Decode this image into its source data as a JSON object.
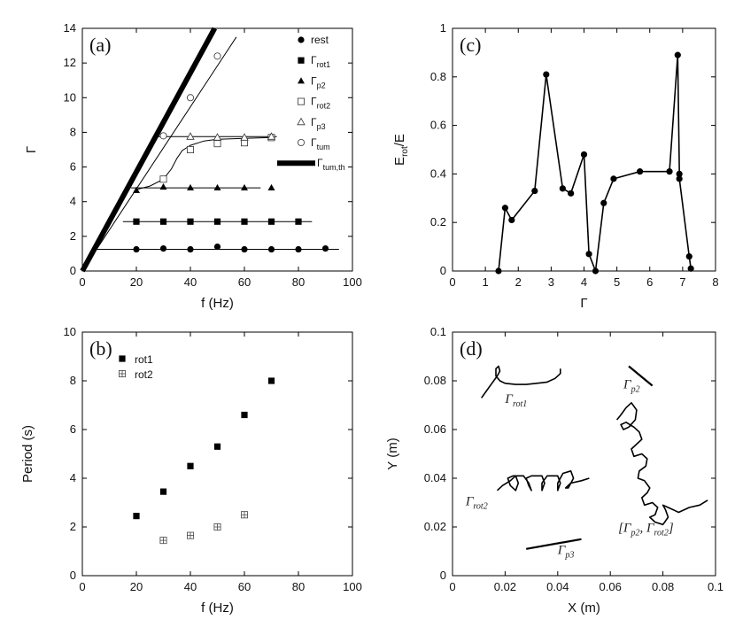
{
  "figure": {
    "description_free": true
  },
  "chart_data": [
    {
      "id": "a",
      "panel_label": "(a)",
      "type": "scatter",
      "xlabel": "f (Hz)",
      "ylabel": "Γ",
      "xlim": [
        0,
        100
      ],
      "ylim": [
        0,
        14
      ],
      "xticks": [
        0,
        20,
        40,
        60,
        80,
        100
      ],
      "yticks": [
        0,
        2,
        4,
        6,
        8,
        10,
        12,
        14
      ],
      "legend_position": "top-right",
      "series": [
        {
          "name": "rest",
          "base": "Γ",
          "sub": "",
          "marker": "filled-circle",
          "x": [
            20,
            30,
            40,
            50,
            60,
            70,
            80,
            90
          ],
          "y": [
            1.25,
            1.3,
            1.25,
            1.4,
            1.25,
            1.25,
            1.25,
            1.3
          ]
        },
        {
          "name": "rot1",
          "base": "Γ",
          "sub": "rot1",
          "marker": "filled-square",
          "x": [
            20,
            30,
            40,
            50,
            60,
            70,
            80
          ],
          "y": [
            2.85,
            2.85,
            2.85,
            2.85,
            2.85,
            2.85,
            2.85
          ]
        },
        {
          "name": "p2",
          "base": "Γ",
          "sub": "p2",
          "marker": "filled-triangle",
          "x": [
            20,
            30,
            40,
            50,
            60,
            70
          ],
          "y": [
            4.65,
            4.85,
            4.8,
            4.8,
            4.8,
            4.8
          ]
        },
        {
          "name": "rot2",
          "base": "Γ",
          "sub": "rot2",
          "marker": "open-square",
          "x": [
            30,
            40,
            50,
            60,
            70
          ],
          "y": [
            5.3,
            7.0,
            7.35,
            7.4,
            7.7
          ]
        },
        {
          "name": "p3",
          "base": "Γ",
          "sub": "p3",
          "marker": "open-triangle",
          "x": [
            40,
            50,
            60,
            70
          ],
          "y": [
            7.75,
            7.7,
            7.7,
            7.75
          ]
        },
        {
          "name": "tum",
          "base": "Γ",
          "sub": "tum",
          "marker": "open-circle",
          "x": [
            30,
            40,
            50
          ],
          "y": [
            7.8,
            10.0,
            12.4
          ]
        },
        {
          "name": "tum,th",
          "base": "Γ",
          "sub": "tum,th",
          "marker": "thick-line",
          "x": [],
          "y": []
        }
      ],
      "fit_lines": [
        {
          "name": "rest-level",
          "x": [
            5,
            95
          ],
          "y": [
            1.25,
            1.25
          ]
        },
        {
          "name": "rot1-level",
          "x": [
            15,
            85
          ],
          "y": [
            2.85,
            2.85
          ]
        },
        {
          "name": "p2-level",
          "x": [
            18,
            66
          ],
          "y": [
            4.8,
            4.8
          ]
        },
        {
          "name": "p3-level",
          "x": [
            28,
            72
          ],
          "y": [
            7.75,
            7.75
          ]
        },
        {
          "name": "tum-fit",
          "x": [
            0,
            57
          ],
          "y": [
            0,
            13.5
          ]
        },
        {
          "name": "tum-th",
          "x": [
            0,
            49
          ],
          "y": [
            0,
            14
          ]
        }
      ],
      "rot2_curve": {
        "x": [
          20,
          25,
          30,
          33,
          35,
          37,
          40,
          45,
          50,
          60,
          70
        ],
        "y": [
          4.7,
          4.9,
          5.3,
          5.9,
          6.5,
          6.95,
          7.25,
          7.5,
          7.6,
          7.65,
          7.7
        ]
      }
    },
    {
      "id": "b",
      "panel_label": "(b)",
      "type": "scatter",
      "xlabel": "f (Hz)",
      "ylabel": "Period (s)",
      "xlim": [
        0,
        100
      ],
      "ylim": [
        0,
        10
      ],
      "xticks": [
        0,
        20,
        40,
        60,
        80,
        100
      ],
      "yticks": [
        0,
        2,
        4,
        6,
        8,
        10
      ],
      "legend_position": "top-left",
      "series": [
        {
          "name": "rot1",
          "marker": "filled-square",
          "x": [
            20,
            30,
            40,
            50,
            60,
            70
          ],
          "y": [
            2.45,
            3.45,
            4.5,
            5.3,
            6.6,
            8.0
          ]
        },
        {
          "name": "rot2",
          "marker": "crossed-square",
          "x": [
            30,
            40,
            50,
            60
          ],
          "y": [
            1.45,
            1.65,
            2.0,
            2.5
          ]
        }
      ]
    },
    {
      "id": "c",
      "panel_label": "(c)",
      "type": "line",
      "xlabel": "Γ",
      "ylabel": "E",
      "ylabel_sub": "rot",
      "ylabel_tail": "/E",
      "xlim": [
        0,
        8
      ],
      "ylim": [
        0,
        1
      ],
      "xticks": [
        0,
        1,
        2,
        3,
        4,
        5,
        6,
        7,
        8
      ],
      "yticks": [
        0,
        0.2,
        0.4,
        0.6,
        0.8,
        1
      ],
      "series": [
        {
          "name": "E_rot/E",
          "marker": "filled-circle",
          "x": [
            1.4,
            1.6,
            1.8,
            2.5,
            2.85,
            3.35,
            3.6,
            4.0,
            4.15,
            4.35,
            4.6,
            4.9,
            5.7,
            6.6,
            6.85,
            6.9,
            6.9,
            7.2,
            7.25
          ],
          "y": [
            0.0,
            0.26,
            0.21,
            0.33,
            0.81,
            0.34,
            0.32,
            0.48,
            0.07,
            0.0,
            0.28,
            0.38,
            0.41,
            0.41,
            0.89,
            0.4,
            0.38,
            0.06,
            0.01
          ]
        }
      ]
    },
    {
      "id": "d",
      "panel_label": "(d)",
      "type": "line",
      "xlabel": "X (m)",
      "ylabel": "Y (m)",
      "xlim": [
        0,
        0.1
      ],
      "ylim": [
        0,
        0.1
      ],
      "xticks": [
        0,
        0.02,
        0.04,
        0.06,
        0.08,
        0.1
      ],
      "yticks": [
        0,
        0.02,
        0.04,
        0.06,
        0.08,
        0.1
      ],
      "annotations": [
        {
          "text_base": "Γ",
          "text_sub": "rot1",
          "x": 0.02,
          "y": 0.071
        },
        {
          "text_base": "Γ",
          "text_sub": "p2",
          "x": 0.065,
          "y": 0.077
        },
        {
          "text_base": "Γ",
          "text_sub": "rot2",
          "x": 0.005,
          "y": 0.029
        },
        {
          "text_base": "Γ",
          "text_sub": "p3",
          "x": 0.04,
          "y": 0.009
        },
        {
          "text_base": "[Γ",
          "text_sub": "p2",
          "text_mid": ", Γ",
          "text_sub2": "rot2",
          "text_tail": "]",
          "x": 0.063,
          "y": 0.018
        }
      ],
      "trajectories": [
        {
          "name": "rot1-trajectory",
          "x": [
            0.011,
            0.013,
            0.015,
            0.017,
            0.018,
            0.0175,
            0.0165,
            0.0165,
            0.018,
            0.02,
            0.024,
            0.028,
            0.032,
            0.036,
            0.039,
            0.041,
            0.041
          ],
          "y": [
            0.073,
            0.076,
            0.079,
            0.082,
            0.084,
            0.086,
            0.085,
            0.082,
            0.08,
            0.079,
            0.0785,
            0.0785,
            0.079,
            0.0795,
            0.081,
            0.083,
            0.085
          ]
        },
        {
          "name": "p2-trajectory",
          "x": [
            0.067,
            0.076
          ],
          "y": [
            0.086,
            0.078
          ]
        },
        {
          "name": "rot2-trajectory",
          "x": [
            0.017,
            0.019,
            0.022,
            0.024,
            0.025,
            0.024,
            0.022,
            0.021,
            0.023,
            0.027,
            0.029,
            0.03,
            0.029,
            0.028,
            0.03,
            0.034,
            0.035,
            0.034,
            0.034,
            0.036,
            0.04,
            0.041,
            0.04,
            0.04,
            0.042,
            0.045,
            0.046,
            0.044,
            0.043,
            0.045,
            0.049,
            0.052
          ],
          "y": [
            0.035,
            0.037,
            0.039,
            0.041,
            0.038,
            0.035,
            0.037,
            0.04,
            0.041,
            0.041,
            0.038,
            0.035,
            0.037,
            0.04,
            0.041,
            0.041,
            0.038,
            0.035,
            0.038,
            0.041,
            0.041,
            0.038,
            0.035,
            0.038,
            0.042,
            0.043,
            0.04,
            0.036,
            0.036,
            0.038,
            0.039,
            0.04
          ]
        },
        {
          "name": "p3-trajectory",
          "x": [
            0.028,
            0.049
          ],
          "y": [
            0.011,
            0.015
          ]
        },
        {
          "name": "p2-rot2-trajectory",
          "x": [
            0.0625,
            0.064,
            0.066,
            0.068,
            0.07,
            0.0695,
            0.067,
            0.065,
            0.064,
            0.066,
            0.069,
            0.071,
            0.072,
            0.07,
            0.068,
            0.069,
            0.072,
            0.074,
            0.0735,
            0.071,
            0.0705,
            0.073,
            0.075,
            0.074,
            0.072,
            0.073,
            0.076,
            0.078,
            0.077,
            0.075,
            0.077,
            0.08,
            0.082,
            0.081,
            0.08,
            0.082,
            0.086,
            0.09,
            0.094,
            0.097
          ],
          "y": [
            0.064,
            0.066,
            0.069,
            0.071,
            0.068,
            0.064,
            0.061,
            0.06,
            0.062,
            0.063,
            0.061,
            0.059,
            0.056,
            0.054,
            0.052,
            0.049,
            0.05,
            0.048,
            0.045,
            0.043,
            0.04,
            0.039,
            0.036,
            0.034,
            0.032,
            0.029,
            0.03,
            0.028,
            0.025,
            0.024,
            0.022,
            0.021,
            0.024,
            0.027,
            0.029,
            0.028,
            0.026,
            0.028,
            0.029,
            0.031
          ]
        }
      ]
    }
  ]
}
